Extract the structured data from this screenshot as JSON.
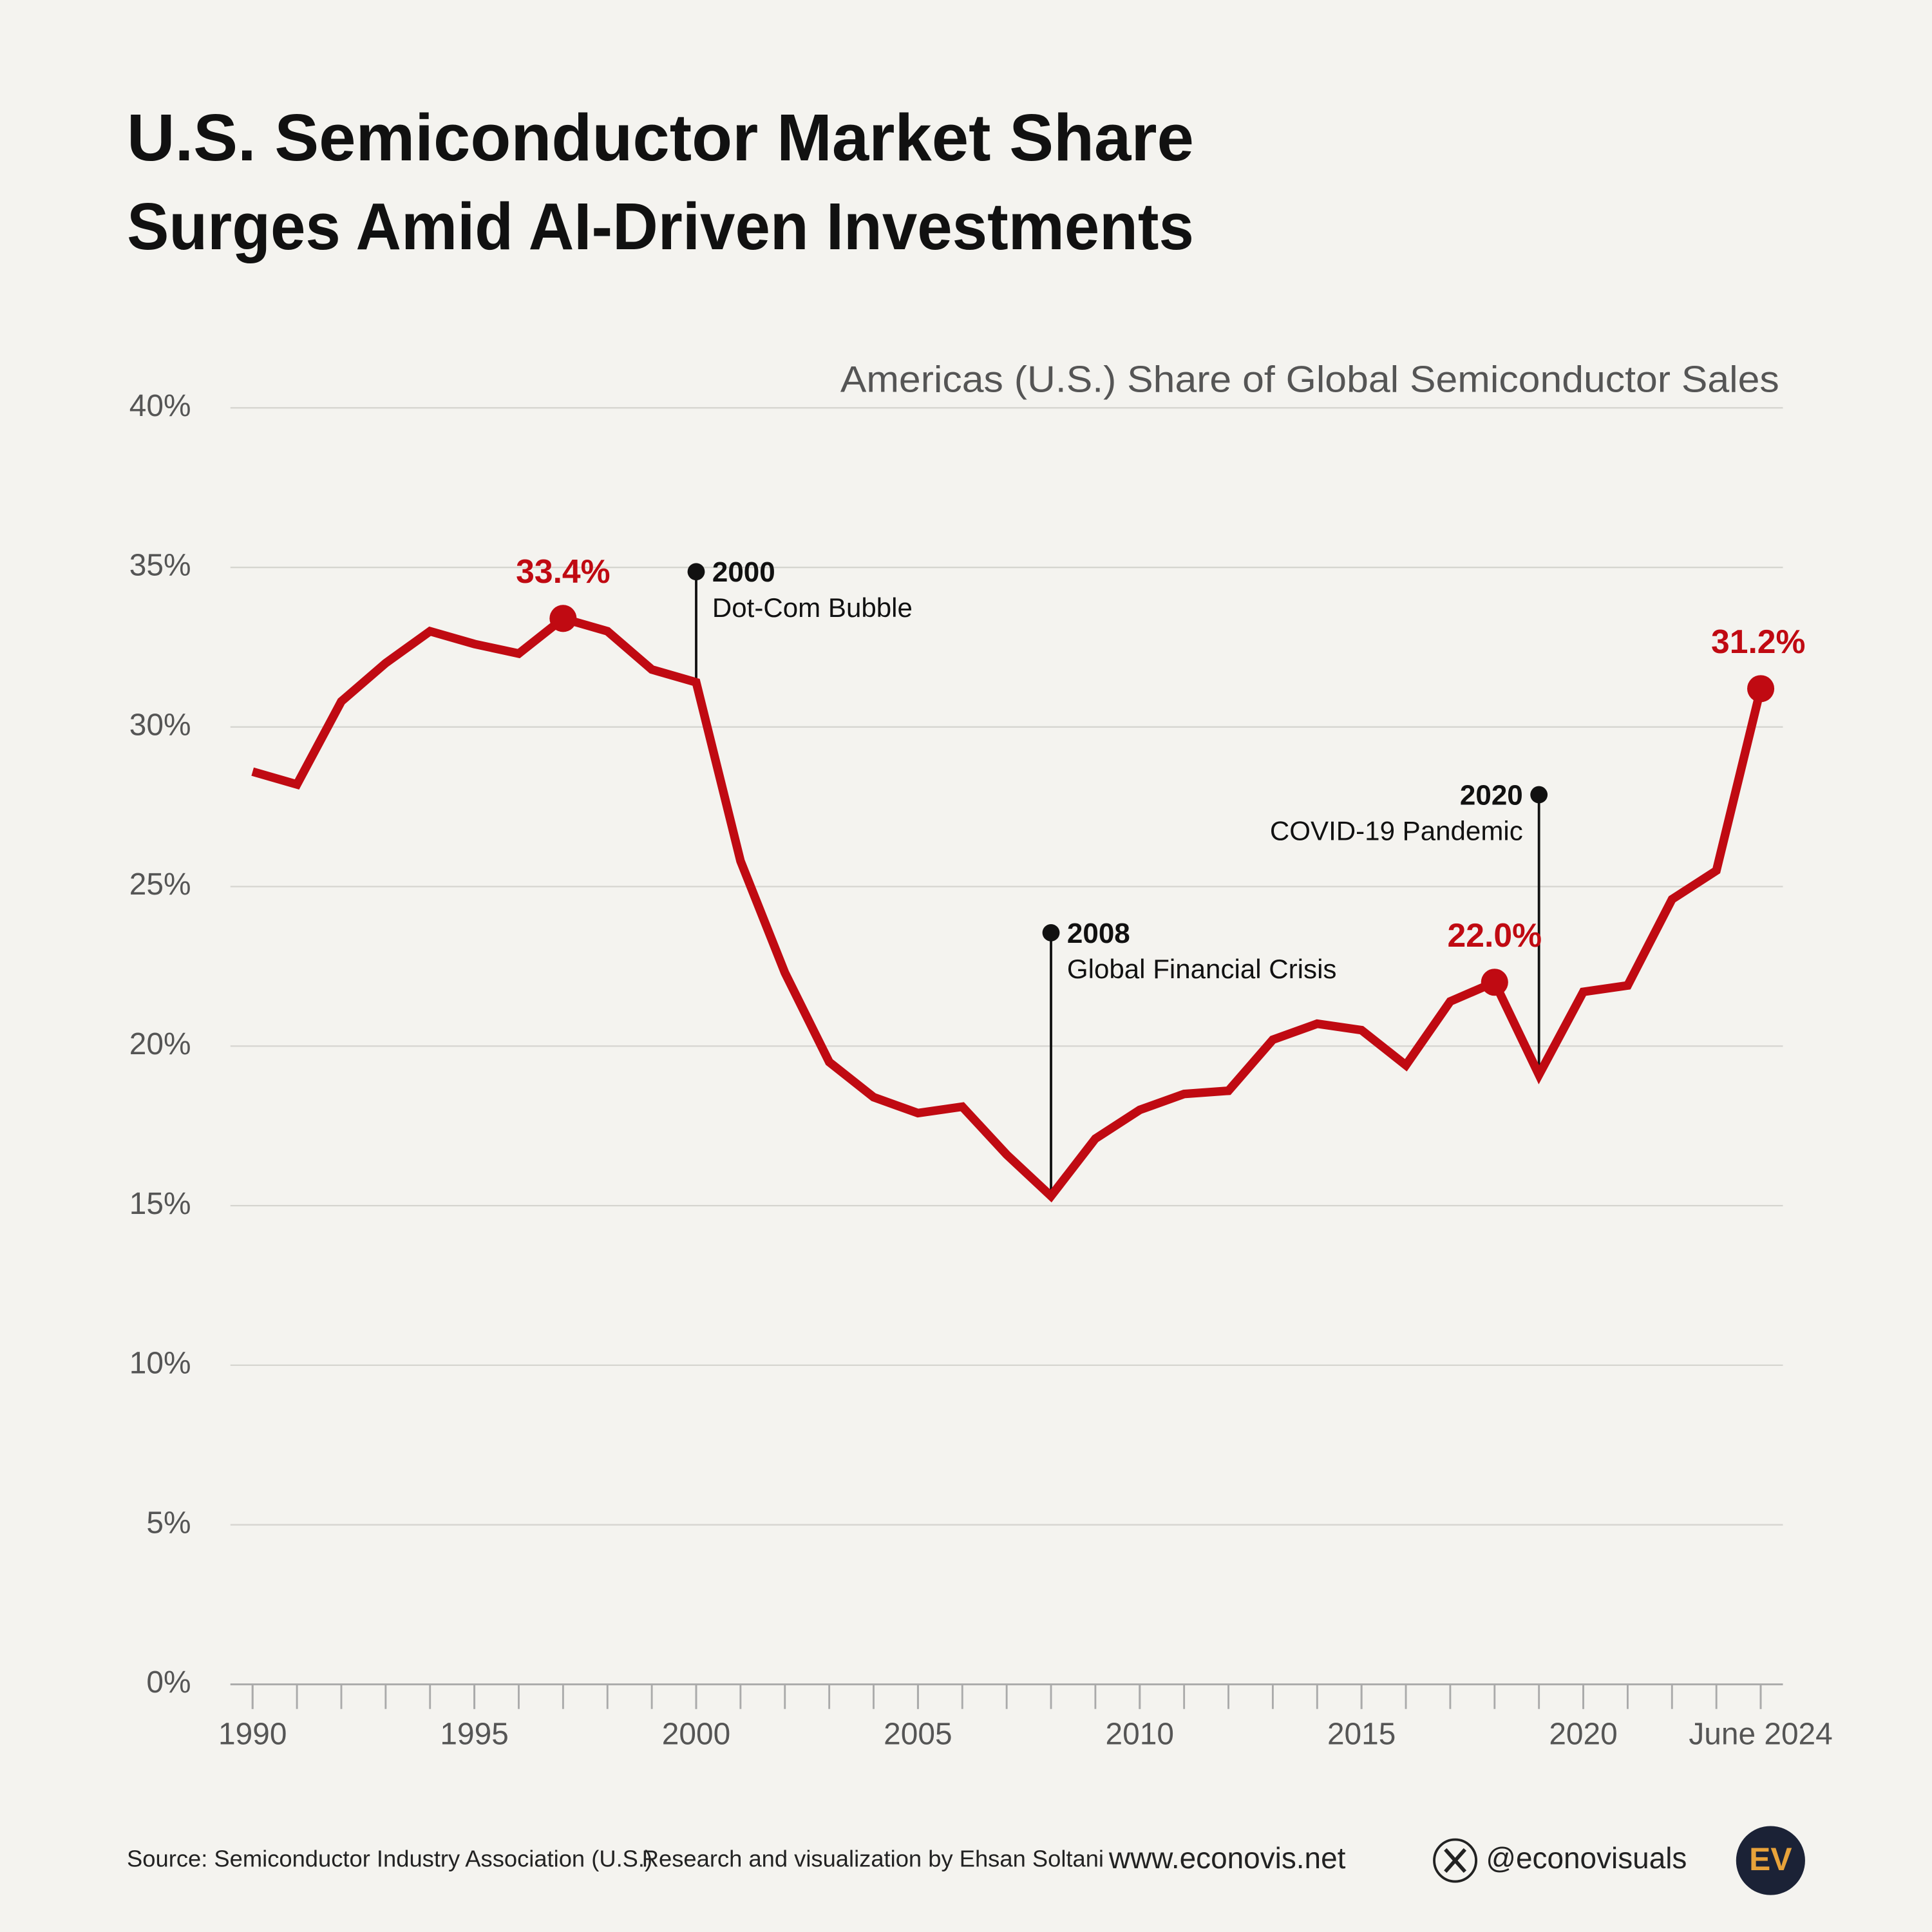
{
  "chart_data": {
    "type": "line",
    "title": [
      "U.S. Semiconductor Market Share",
      "Surges Amid AI-Driven Investments"
    ],
    "subtitle": "Americas (U.S.) Share of Global Semiconductor Sales",
    "x": [
      1990,
      1991,
      1992,
      1993,
      1994,
      1995,
      1996,
      1997,
      1998,
      1999,
      2000,
      2001,
      2002,
      2003,
      2004,
      2005,
      2006,
      2007,
      2008,
      2009,
      2010,
      2011,
      2012,
      2013,
      2014,
      2015,
      2016,
      2017,
      2018,
      2019,
      2020,
      2021,
      2022,
      2023,
      2024
    ],
    "values": [
      28.6,
      28.2,
      30.8,
      32.0,
      33.0,
      32.6,
      32.3,
      33.4,
      33.0,
      31.8,
      31.4,
      25.8,
      22.3,
      19.5,
      18.4,
      17.9,
      18.1,
      16.6,
      15.3,
      17.1,
      18.0,
      18.5,
      18.6,
      20.2,
      20.7,
      20.5,
      19.4,
      21.4,
      22.0,
      19.1,
      21.7,
      21.9,
      24.6,
      25.5,
      31.2
    ],
    "value_labels": [
      null,
      null,
      null,
      null,
      null,
      null,
      null,
      "33.4%",
      null,
      null,
      null,
      null,
      null,
      null,
      null,
      null,
      null,
      null,
      null,
      null,
      null,
      null,
      null,
      null,
      null,
      null,
      null,
      null,
      "22.0%",
      null,
      null,
      null,
      null,
      null,
      "31.2%"
    ],
    "color": "#c00a12",
    "xlim": [
      1989.5,
      2024.5
    ],
    "xticks": [
      1990,
      1995,
      2000,
      2005,
      2010,
      2015,
      2020,
      {
        "value": 2024,
        "label": "June 2024"
      }
    ],
    "ylim": [
      0,
      40
    ],
    "yticks": [
      {
        "value": 0,
        "label": "0%"
      },
      {
        "value": 5,
        "label": "5%"
      },
      {
        "value": 10,
        "label": "10%"
      },
      {
        "value": 15,
        "label": "15%"
      },
      {
        "value": 20,
        "label": "20%"
      },
      {
        "value": 25,
        "label": "25%"
      },
      {
        "value": 30,
        "label": "30%"
      },
      {
        "value": 35,
        "label": "35%"
      },
      {
        "value": 40,
        "label": "40%"
      }
    ],
    "grid": true,
    "annotations": [
      {
        "year": "2000",
        "label": "Dot-Com Bubble"
      },
      {
        "year": "2008",
        "label": "Global Financial Crisis"
      },
      {
        "year": "2020",
        "label": "COVID-19 Pandemic"
      }
    ]
  },
  "footer": {
    "source": "Source: Semiconductor Industry Association (U.S.)",
    "credit": "Research and visualization by Ehsan Soltani",
    "website": "www.econovis.net",
    "handle": "@econovisuals",
    "logo": "EV"
  }
}
